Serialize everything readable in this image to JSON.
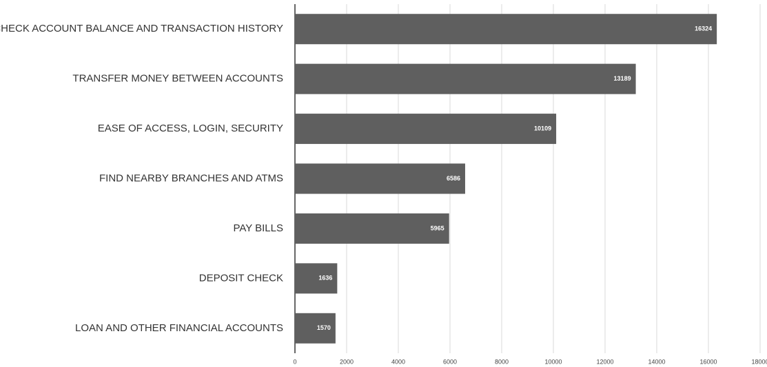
{
  "chart_data": {
    "type": "barh",
    "categories": [
      "CHECK ACCOUNT BALANCE AND TRANSACTION HISTORY",
      "TRANSFER MONEY BETWEEN ACCOUNTS",
      "EASE OF ACCESS, LOGIN, SECURITY",
      "FIND NEARBY BRANCHES AND ATMS",
      "PAY BILLS",
      "DEPOSIT CHECK",
      "LOAN AND OTHER FINANCIAL ACCOUNTS"
    ],
    "values": [
      16324,
      13189,
      10109,
      6586,
      5965,
      1636,
      1570
    ],
    "color": "#5f5f5f",
    "xlim": [
      0,
      18000
    ],
    "xticks": [
      0,
      2000,
      4000,
      6000,
      8000,
      10000,
      12000,
      14000,
      16000,
      18000
    ],
    "grid": true
  }
}
